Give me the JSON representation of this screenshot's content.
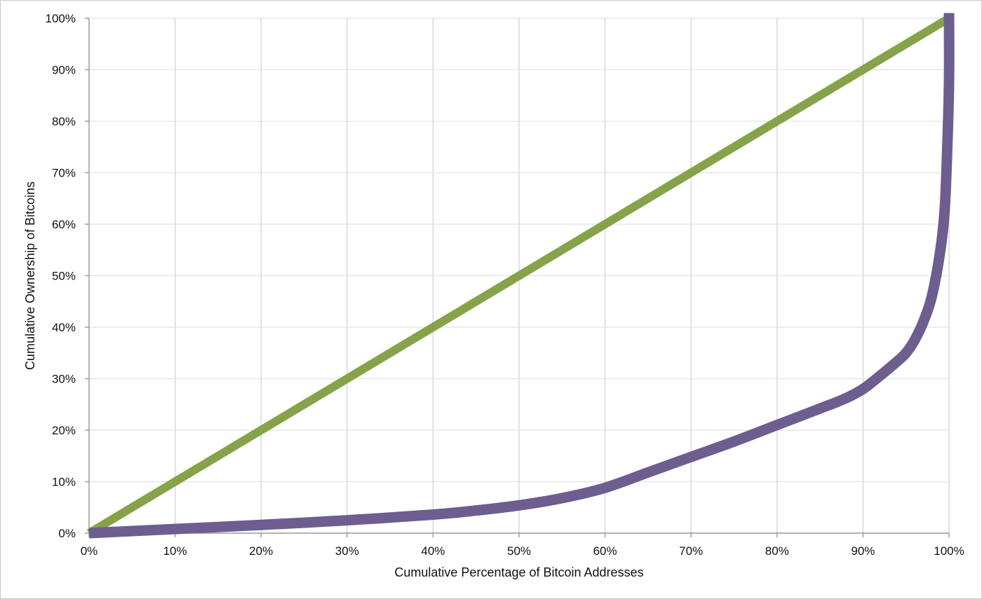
{
  "chart_data": {
    "type": "line",
    "title": "",
    "xlabel": "Cumulative Percentage of Bitcoin Addresses",
    "ylabel": "Cumulative Ownership of Bitcoins",
    "xlim": [
      0,
      100
    ],
    "ylim": [
      0,
      100
    ],
    "x_ticks": [
      "0%",
      "10%",
      "20%",
      "30%",
      "40%",
      "50%",
      "60%",
      "70%",
      "80%",
      "90%",
      "100%"
    ],
    "y_ticks": [
      "0%",
      "10%",
      "20%",
      "30%",
      "40%",
      "50%",
      "60%",
      "70%",
      "80%",
      "90%",
      "100%"
    ],
    "grid": true,
    "legend": "none",
    "series": [
      {
        "color": "#86a34a",
        "points": [
          [
            0,
            0
          ],
          [
            100,
            100
          ]
        ]
      },
      {
        "color": "#6d5e8f",
        "points": [
          [
            0,
            0
          ],
          [
            10,
            0.8
          ],
          [
            20,
            1.6
          ],
          [
            30,
            2.5
          ],
          [
            40,
            3.6
          ],
          [
            45,
            4.4
          ],
          [
            50,
            5.4
          ],
          [
            55,
            6.8
          ],
          [
            60,
            8.8
          ],
          [
            65,
            11.8
          ],
          [
            70,
            14.8
          ],
          [
            75,
            17.8
          ],
          [
            80,
            21
          ],
          [
            85,
            24.2
          ],
          [
            88,
            26.2
          ],
          [
            90,
            28
          ],
          [
            92,
            30.6
          ],
          [
            94,
            33.4
          ],
          [
            95,
            35
          ],
          [
            96,
            37.5
          ],
          [
            97,
            41
          ],
          [
            98,
            46
          ],
          [
            99,
            55
          ],
          [
            99.5,
            63
          ],
          [
            99.8,
            75
          ],
          [
            100,
            88
          ],
          [
            100,
            101
          ]
        ]
      }
    ]
  }
}
